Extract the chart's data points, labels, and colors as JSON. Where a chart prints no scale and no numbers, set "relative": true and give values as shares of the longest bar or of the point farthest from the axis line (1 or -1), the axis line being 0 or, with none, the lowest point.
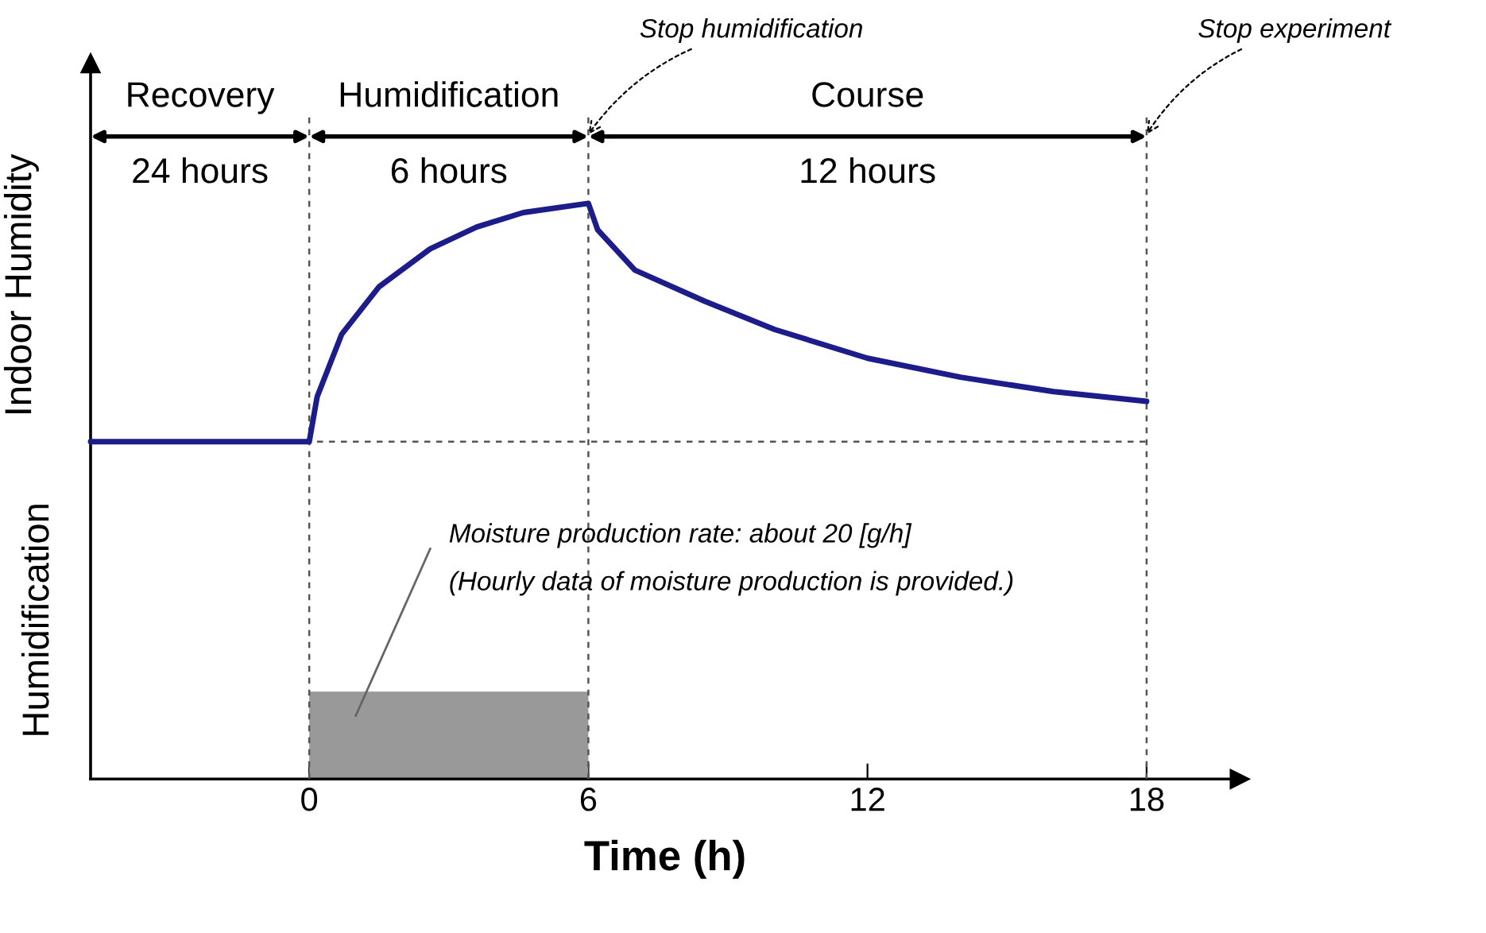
{
  "chart_data": {
    "type": "line",
    "relative": true,
    "ylabel": "Indoor Humidity",
    "xlabel": "Time (h)",
    "xlim": [
      -4.7,
      20
    ],
    "xticks": [
      0,
      6,
      12,
      18
    ],
    "grid": false,
    "series": [
      {
        "color": "#1c1c8a",
        "x": [
          -4.7,
          0,
          0.17,
          0.7,
          1.5,
          2.6,
          3.6,
          4.6,
          6,
          6.2,
          7,
          8.5,
          10,
          12,
          14,
          16,
          18
        ],
        "values": [
          0.586,
          0.586,
          0.664,
          0.773,
          0.855,
          0.921,
          0.959,
          0.984,
          1,
          0.954,
          0.884,
          0.83,
          0.781,
          0.731,
          0.698,
          0.673,
          0.656
        ]
      },
      {
        "type": "area",
        "color": "#999999",
        "x": [
          0,
          6
        ],
        "values": [
          0.152,
          0.152
        ]
      }
    ],
    "ref_lines": [
      {
        "axis": "y",
        "value": 0.586,
        "line_style": "dashed",
        "color": "#555555"
      },
      {
        "axis": "x",
        "value": 0,
        "line_style": "dashed",
        "color": "#555555"
      },
      {
        "axis": "x",
        "value": 6,
        "line_style": "dashed",
        "color": "#555555"
      },
      {
        "axis": "x",
        "value": 18,
        "line_style": "dashed",
        "color": "#555555"
      }
    ],
    "annotations": [
      "Recovery",
      "24 hours",
      "Humidification",
      "6 hours",
      "Course",
      "12 hours",
      "Stop humidification",
      "Stop experiment",
      "Humidification",
      "Moisture production rate: about 20 [g/h]",
      "(Hourly data of moisture production is provided.)"
    ]
  }
}
